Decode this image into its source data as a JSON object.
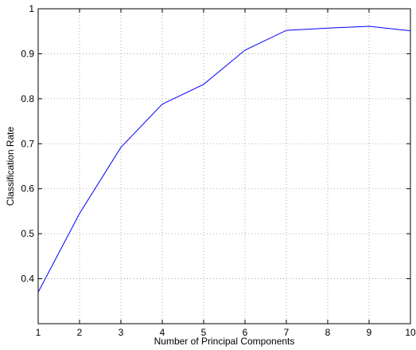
{
  "chart_data": {
    "type": "line",
    "title": "",
    "xlabel": "Number of Principal Components",
    "ylabel": "Classification Rate",
    "xlim": [
      1,
      10
    ],
    "ylim": [
      0.3,
      1.0
    ],
    "x_ticks": [
      "1",
      "2",
      "3",
      "4",
      "5",
      "6",
      "7",
      "8",
      "9",
      "10"
    ],
    "y_ticks": [
      "0.4",
      "0.5",
      "0.6",
      "0.7",
      "0.8",
      "0.9",
      "1"
    ],
    "x_tick_values": [
      1,
      2,
      3,
      4,
      5,
      6,
      7,
      8,
      9,
      10
    ],
    "y_tick_values": [
      0.4,
      0.5,
      0.6,
      0.7,
      0.8,
      0.9,
      1.0
    ],
    "grid": true,
    "series": [
      {
        "color": "#0000ff",
        "x": [
          1,
          2,
          3,
          4,
          5,
          6,
          7,
          8,
          9,
          10
        ],
        "y": [
          0.37,
          0.545,
          0.692,
          0.788,
          0.832,
          0.908,
          0.952,
          0.957,
          0.961,
          0.951
        ]
      }
    ]
  }
}
